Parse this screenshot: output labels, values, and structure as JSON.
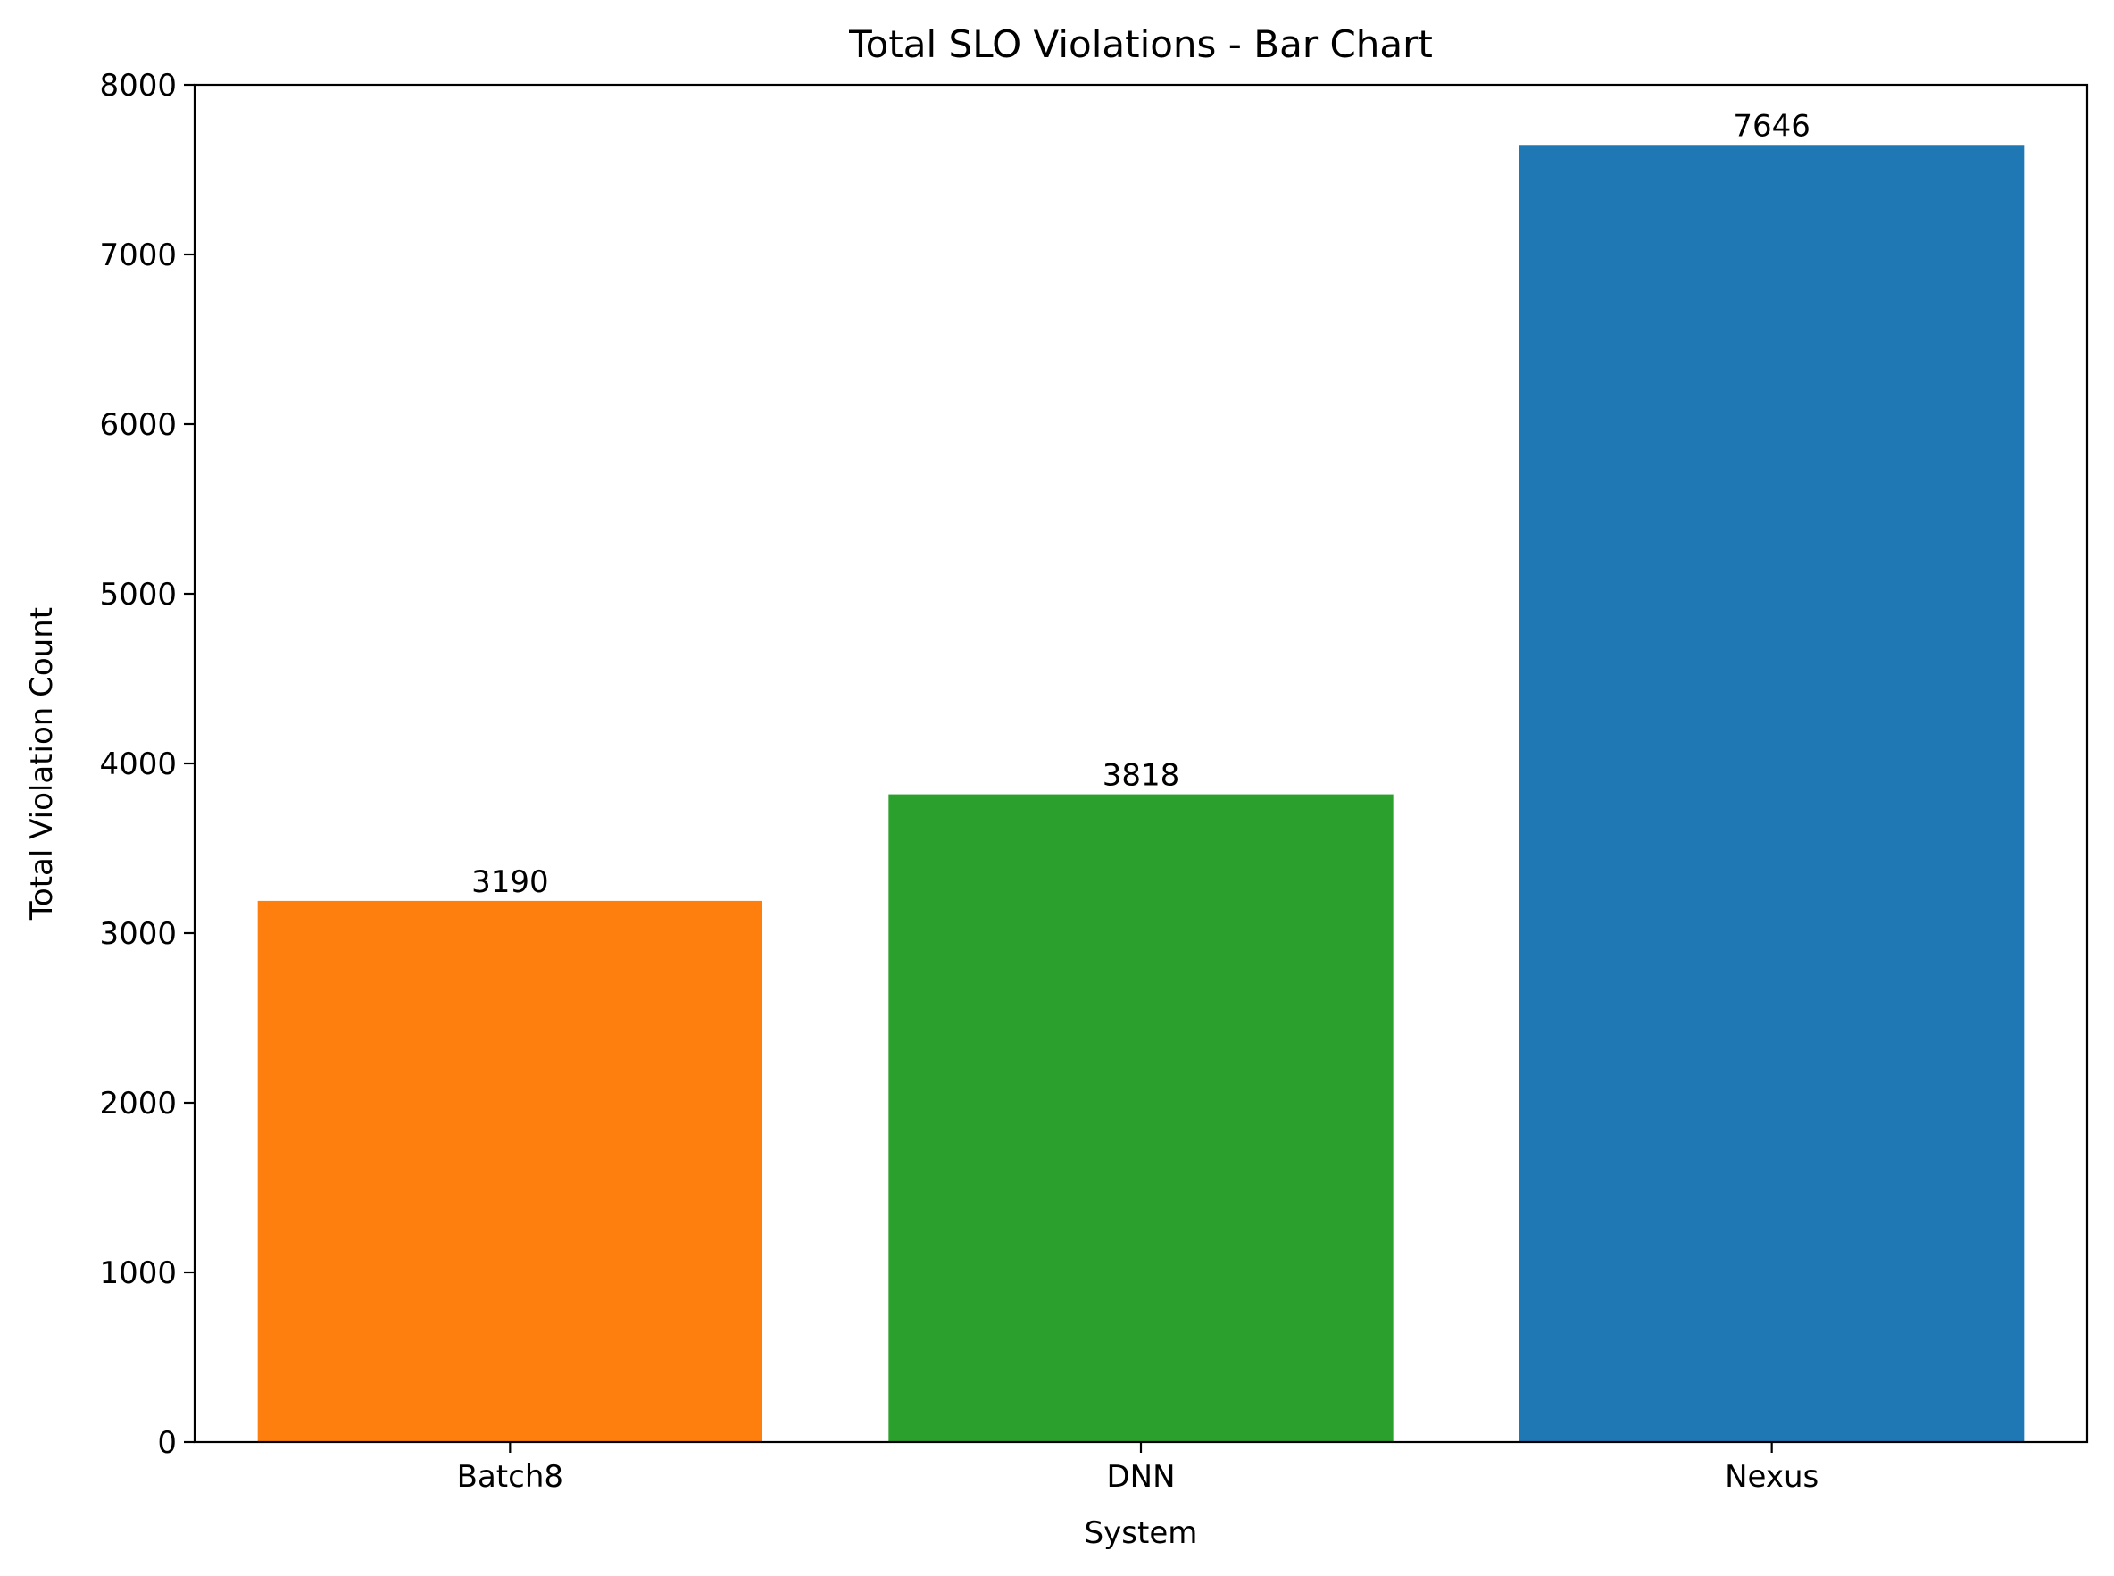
{
  "chart_data": {
    "type": "bar",
    "title": "Total SLO Violations - Bar Chart",
    "xlabel": "System",
    "ylabel": "Total Violation Count",
    "categories": [
      "Batch8",
      "DNN",
      "Nexus"
    ],
    "values": [
      3190,
      3818,
      7646
    ],
    "data_labels": [
      "3190",
      "3818",
      "7646"
    ],
    "colors": [
      "#ff7f0e",
      "#2ca02c",
      "#1f77b4"
    ],
    "ylim": [
      0,
      8000
    ],
    "yticks": [
      0,
      1000,
      2000,
      3000,
      4000,
      5000,
      6000,
      7000,
      8000
    ],
    "ytick_labels": [
      "0",
      "1000",
      "2000",
      "3000",
      "4000",
      "5000",
      "6000",
      "7000",
      "8000"
    ],
    "grid": false,
    "legend": false
  }
}
